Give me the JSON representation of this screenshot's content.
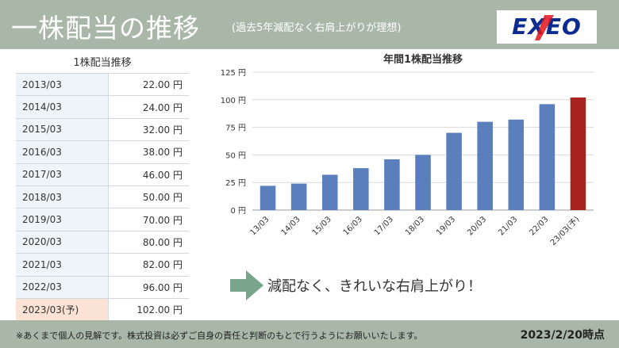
{
  "header": {
    "title": "一株配当の推移",
    "subtitle": "(過去5年減配なく右肩上がりが理想)",
    "logo_text": "EXEO"
  },
  "table": {
    "title": "1株配当推移",
    "rows": [
      {
        "year": "2013/03",
        "amount": "22.00 円",
        "forecast": false
      },
      {
        "year": "2014/03",
        "amount": "24.00 円",
        "forecast": false
      },
      {
        "year": "2015/03",
        "amount": "32.00 円",
        "forecast": false
      },
      {
        "year": "2016/03",
        "amount": "38.00 円",
        "forecast": false
      },
      {
        "year": "2017/03",
        "amount": "46.00 円",
        "forecast": false
      },
      {
        "year": "2018/03",
        "amount": "50.00 円",
        "forecast": false
      },
      {
        "year": "2019/03",
        "amount": "70.00 円",
        "forecast": false
      },
      {
        "year": "2020/03",
        "amount": "80.00 円",
        "forecast": false
      },
      {
        "year": "2021/03",
        "amount": "82.00 円",
        "forecast": false
      },
      {
        "year": "2022/03",
        "amount": "96.00 円",
        "forecast": false
      },
      {
        "year": "2023/03(予)",
        "amount": "102.00 円",
        "forecast": true
      }
    ]
  },
  "chart_data": {
    "type": "bar",
    "title": "年間1株配当推移",
    "categories": [
      "13/03",
      "14/03",
      "15/03",
      "16/03",
      "17/03",
      "18/03",
      "19/03",
      "20/03",
      "21/03",
      "22/03",
      "23/03(予)"
    ],
    "values": [
      22,
      24,
      32,
      38,
      46,
      50,
      70,
      80,
      82,
      96,
      102
    ],
    "highlight_index": 10,
    "ylim": [
      0,
      125
    ],
    "yticks": [
      0,
      25,
      50,
      75,
      100,
      125
    ],
    "ytick_labels": [
      "0 円",
      "25 円",
      "50 円",
      "75 円",
      "100 円",
      "125 円"
    ],
    "grid": true,
    "bar_color": "#5b7fbd",
    "highlight_color": "#a8231e",
    "xlabel": "",
    "ylabel": ""
  },
  "slogan": "減配なく、きれいな右肩上がり！",
  "footer": {
    "disclaimer": "※あくまで個人の見解です。株式投資は必ずご自身の責任と判断のもとで行うようにお願いいたします。",
    "as_of": "2023/2/20時点"
  },
  "colors": {
    "header_bg": "#a9b7a9",
    "arrow": "#7aa58c",
    "logo_text": "#0b2c8f",
    "logo_accent": "#e0141e"
  }
}
